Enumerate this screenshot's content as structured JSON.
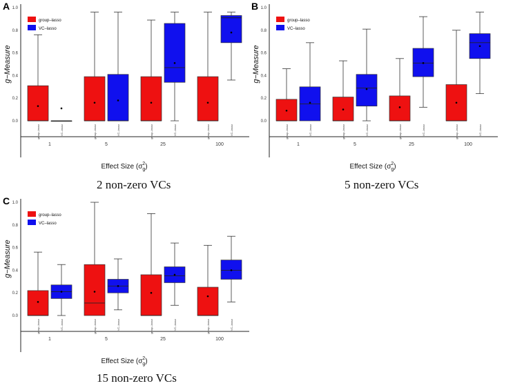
{
  "figure": {
    "legend": [
      "group–lasso",
      "VC–lasso"
    ],
    "colors": {
      "group": "#ee1111",
      "vc": "#1010ee",
      "axis": "#222222",
      "text": "#333333"
    }
  },
  "chart_data": [
    {
      "type": "box",
      "panel_label": "A",
      "caption": "2 non-zero VCs",
      "xlabel": "Effect Size (σg2)",
      "ylabel": "g−Measure",
      "ylim": [
        0,
        1
      ],
      "yticks": [
        "0.0",
        "0.2",
        "0.4",
        "0.6",
        "0.8",
        "1.0"
      ],
      "categories": [
        "1",
        "5",
        "25",
        "100"
      ],
      "series": [
        {
          "name": "group–lasso",
          "tick_label": "group–lasso",
          "boxes": [
            {
              "min": 0.0,
              "q1": 0.0,
              "median": 0.0,
              "q3": 0.31,
              "max": 0.76,
              "mean": 0.13
            },
            {
              "min": 0.0,
              "q1": 0.0,
              "median": 0.0,
              "q3": 0.39,
              "max": 0.96,
              "mean": 0.16
            },
            {
              "min": 0.0,
              "q1": 0.0,
              "median": 0.0,
              "q3": 0.39,
              "max": 0.89,
              "mean": 0.16
            },
            {
              "min": 0.0,
              "q1": 0.0,
              "median": 0.0,
              "q3": 0.39,
              "max": 0.96,
              "mean": 0.16
            }
          ]
        },
        {
          "name": "VC–lasso",
          "tick_label": "VC–lasso",
          "boxes": [
            {
              "min": 0.0,
              "q1": 0.0,
              "median": 0.0,
              "q3": 0.0,
              "max": 0.0,
              "mean": 0.11
            },
            {
              "min": 0.0,
              "q1": 0.0,
              "median": 0.0,
              "q3": 0.41,
              "max": 0.96,
              "mean": 0.18
            },
            {
              "min": 0.0,
              "q1": 0.34,
              "median": 0.47,
              "q3": 0.86,
              "max": 0.96,
              "mean": 0.51
            },
            {
              "min": 0.36,
              "q1": 0.69,
              "median": 0.91,
              "q3": 0.93,
              "max": 0.96,
              "mean": 0.78
            }
          ]
        }
      ]
    },
    {
      "type": "box",
      "panel_label": "B",
      "caption": "5 non-zero VCs",
      "xlabel": "Effect Size (σg2)",
      "ylabel": "g−Measure",
      "ylim": [
        0,
        1
      ],
      "yticks": [
        "0.0",
        "0.2",
        "0.4",
        "0.6",
        "0.8",
        "1.0"
      ],
      "categories": [
        "1",
        "5",
        "25",
        "100"
      ],
      "series": [
        {
          "name": "group–lasso",
          "tick_label": "group–lasso",
          "boxes": [
            {
              "min": 0.0,
              "q1": 0.0,
              "median": 0.0,
              "q3": 0.19,
              "max": 0.46,
              "mean": 0.09
            },
            {
              "min": 0.0,
              "q1": 0.0,
              "median": 0.0,
              "q3": 0.21,
              "max": 0.53,
              "mean": 0.1
            },
            {
              "min": 0.0,
              "q1": 0.0,
              "median": 0.0,
              "q3": 0.22,
              "max": 0.55,
              "mean": 0.12
            },
            {
              "min": 0.0,
              "q1": 0.0,
              "median": 0.0,
              "q3": 0.32,
              "max": 0.8,
              "mean": 0.16
            }
          ]
        },
        {
          "name": "VC–lasso",
          "tick_label": "VC–lasso",
          "boxes": [
            {
              "min": 0.0,
              "q1": 0.0,
              "median": 0.15,
              "q3": 0.3,
              "max": 0.69,
              "mean": 0.16
            },
            {
              "min": 0.0,
              "q1": 0.13,
              "median": 0.29,
              "q3": 0.41,
              "max": 0.81,
              "mean": 0.28
            },
            {
              "min": 0.12,
              "q1": 0.39,
              "median": 0.51,
              "q3": 0.64,
              "max": 0.92,
              "mean": 0.51
            },
            {
              "min": 0.24,
              "q1": 0.55,
              "median": 0.69,
              "q3": 0.77,
              "max": 0.96,
              "mean": 0.66
            }
          ]
        }
      ]
    },
    {
      "type": "box",
      "panel_label": "C",
      "caption": "15 non-zero VCs",
      "xlabel": "Effect Size (σg2)",
      "ylabel": "g−Measure",
      "ylim": [
        0,
        1
      ],
      "yticks": [
        "0.0",
        "0.2",
        "0.4",
        "0.6",
        "0.8",
        "1.0"
      ],
      "categories": [
        "1",
        "5",
        "25",
        "100"
      ],
      "series": [
        {
          "name": "group–lasso",
          "tick_label": "group–lasso",
          "boxes": [
            {
              "min": 0.0,
              "q1": 0.0,
              "median": 0.0,
              "q3": 0.22,
              "max": 0.56,
              "mean": 0.12
            },
            {
              "min": 0.0,
              "q1": 0.0,
              "median": 0.11,
              "q3": 0.45,
              "max": 1.0,
              "mean": 0.21
            },
            {
              "min": 0.0,
              "q1": 0.0,
              "median": 0.0,
              "q3": 0.36,
              "max": 0.9,
              "mean": 0.2
            },
            {
              "min": 0.0,
              "q1": 0.0,
              "median": 0.0,
              "q3": 0.25,
              "max": 0.62,
              "mean": 0.17
            }
          ]
        },
        {
          "name": "VC–lasso",
          "tick_label": "VC–lasso",
          "boxes": [
            {
              "min": 0.0,
              "q1": 0.15,
              "median": 0.21,
              "q3": 0.27,
              "max": 0.45,
              "mean": 0.21
            },
            {
              "min": 0.05,
              "q1": 0.2,
              "median": 0.26,
              "q3": 0.32,
              "max": 0.5,
              "mean": 0.26
            },
            {
              "min": 0.09,
              "q1": 0.29,
              "median": 0.35,
              "q3": 0.43,
              "max": 0.64,
              "mean": 0.36
            },
            {
              "min": 0.12,
              "q1": 0.32,
              "median": 0.4,
              "q3": 0.49,
              "max": 0.7,
              "mean": 0.4
            }
          ]
        }
      ]
    }
  ]
}
